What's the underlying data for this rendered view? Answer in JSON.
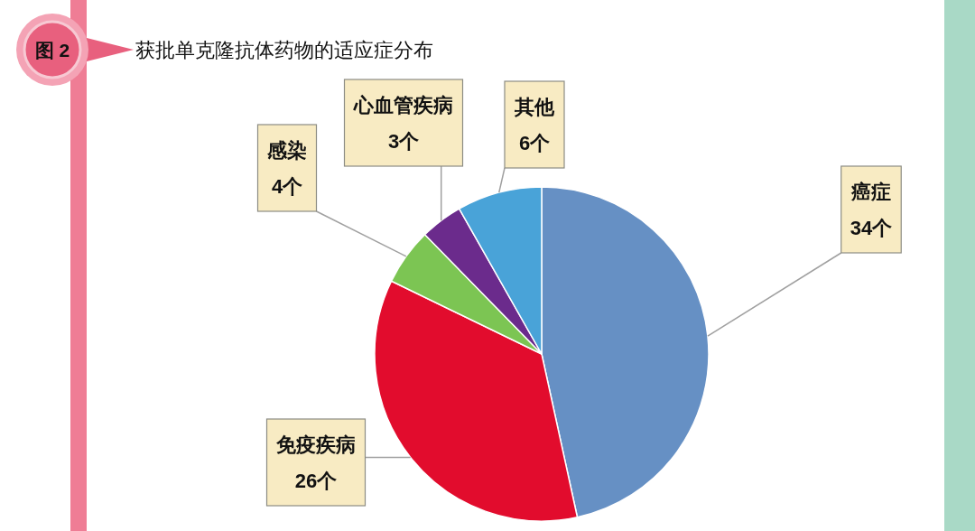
{
  "chart_data": {
    "type": "pie",
    "title": "获批单克隆抗体药物的适应症分布",
    "annotations": [
      "图 2"
    ],
    "categories": [
      "癌症",
      "免疫疾病",
      "感染",
      "心血管疾病",
      "其他"
    ],
    "values": [
      34,
      26,
      4,
      3,
      6
    ],
    "colors": [
      "#6690c4",
      "#e20c2d",
      "#7cc553",
      "#6b2b8c",
      "#49a3d8"
    ],
    "value_labels": [
      "34个",
      "26个",
      "4个",
      "3个",
      "6个"
    ]
  }
}
